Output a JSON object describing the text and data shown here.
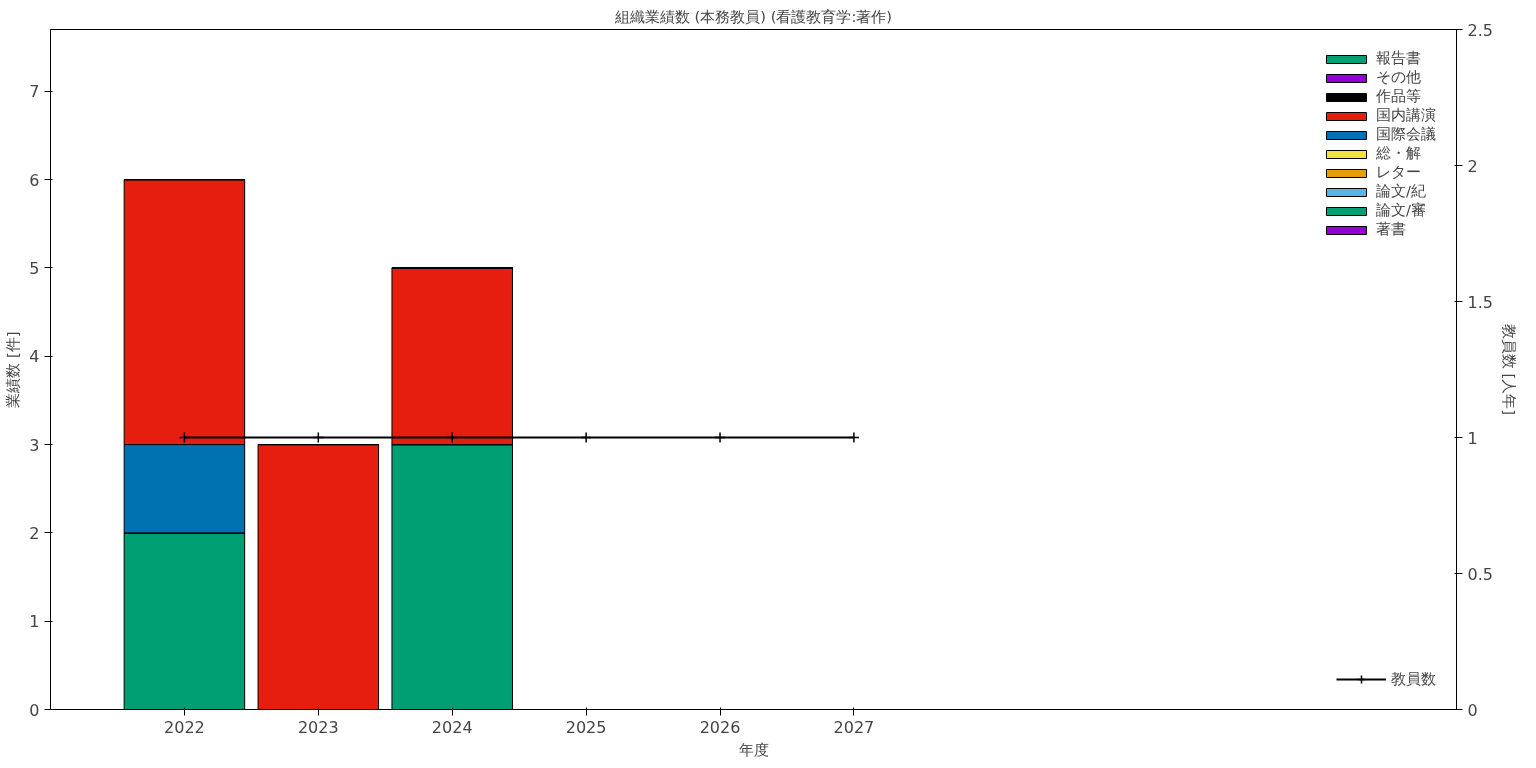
{
  "chart_data": {
    "type": "bar",
    "title": "組織業績数 (本務教員) (看護教育学:著作)",
    "xlabel": "年度",
    "ylabel": "業績数 [件]",
    "y2label": "教員数 [人年]",
    "stacked": true,
    "x": [
      2022,
      2023,
      2024
    ],
    "series": [
      {
        "name": "著書",
        "color": "#9400d3",
        "values": [
          0,
          0,
          0
        ]
      },
      {
        "name": "論文/審",
        "color": "#009e73",
        "values": [
          2,
          0,
          3
        ]
      },
      {
        "name": "論文/紀",
        "color": "#56b4e9",
        "values": [
          0,
          0,
          0
        ]
      },
      {
        "name": "レター",
        "color": "#e69f00",
        "values": [
          0,
          0,
          0
        ]
      },
      {
        "name": "総・解",
        "color": "#f0e442",
        "values": [
          0,
          0,
          0
        ]
      },
      {
        "name": "国際会議",
        "color": "#0072b2",
        "values": [
          1,
          0,
          0
        ]
      },
      {
        "name": "国内講演",
        "color": "#e51e10",
        "values": [
          3,
          3,
          2
        ]
      },
      {
        "name": "作品等",
        "color": "#000000",
        "values": [
          0,
          0,
          0
        ]
      },
      {
        "name": "その他",
        "color": "#9400d3",
        "values": [
          0,
          0,
          0
        ]
      },
      {
        "name": "報告書",
        "color": "#009e73",
        "values": [
          0,
          0,
          0
        ]
      },
      {
        "name": "教員数",
        "type": "line",
        "axis": "y2",
        "color": "#000000",
        "marker": "cross",
        "line_style": "solid",
        "x": [
          2022,
          2023,
          2024,
          2025,
          2026,
          2027
        ],
        "values": [
          1,
          1,
          1,
          1,
          1,
          1
        ]
      }
    ],
    "xlim": [
      2021,
      2031.5
    ],
    "xticks": [
      2022,
      2023,
      2024,
      2025,
      2026,
      2027
    ],
    "ylim": [
      0,
      7.7
    ],
    "yticks": [
      0,
      1,
      2,
      3,
      4,
      5,
      6,
      7
    ],
    "y2lim": [
      0,
      2.5
    ],
    "y2ticks": [
      0,
      0.5,
      1,
      1.5,
      2,
      2.5
    ],
    "grid": false,
    "legend": "top right"
  }
}
